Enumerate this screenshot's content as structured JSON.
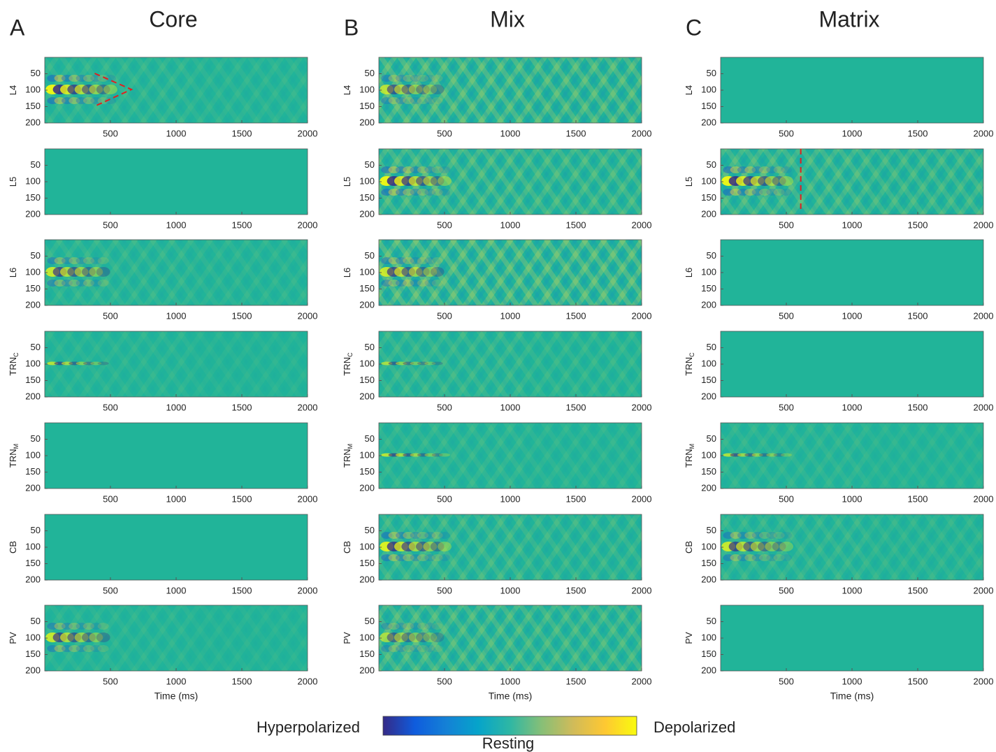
{
  "panels": [
    {
      "letter": "A",
      "title": "Core"
    },
    {
      "letter": "B",
      "title": "Mix"
    },
    {
      "letter": "C",
      "title": "Matrix"
    }
  ],
  "rows": [
    {
      "label": "L4"
    },
    {
      "label": "L5"
    },
    {
      "label": "L6"
    },
    {
      "label": "TRN",
      "sub": "C"
    },
    {
      "label": "TRN",
      "sub": "M"
    },
    {
      "label": "CB"
    },
    {
      "label": "PV"
    }
  ],
  "xlim": [
    0,
    2000
  ],
  "xticks": [
    500,
    1000,
    1500,
    2000
  ],
  "ylim": [
    0,
    200
  ],
  "yticks": [
    50,
    100,
    150,
    200
  ],
  "y_reversed": true,
  "xlabel": "Time (ms)",
  "colorbar": {
    "left": "Hyperpolarized",
    "center": "Resting",
    "right": "Depolarized",
    "colors": [
      "#352a87",
      "#0f5cdd",
      "#1481d6",
      "#06a4ca",
      "#2eb7a4",
      "#87bf77",
      "#d1bb59",
      "#fec832",
      "#f9fb0e"
    ]
  }
}
